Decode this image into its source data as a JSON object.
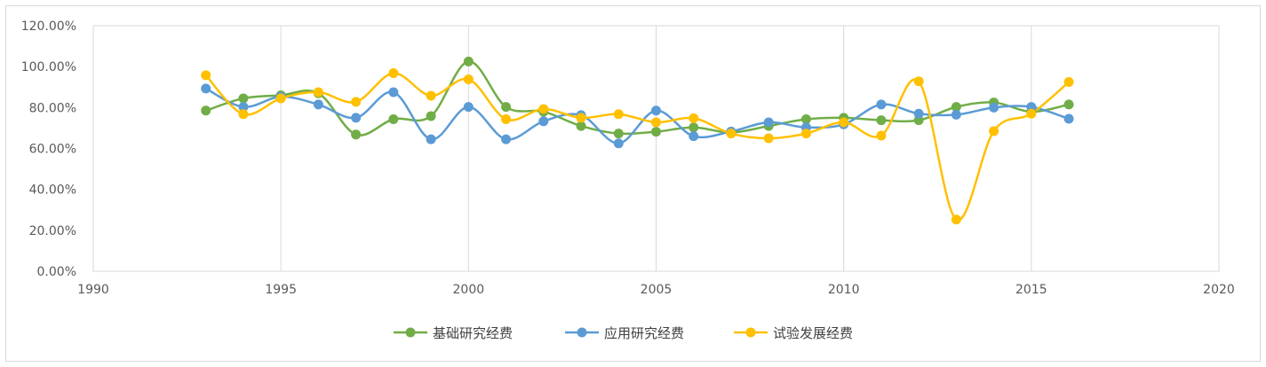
{
  "chart_data": {
    "type": "line",
    "title": "",
    "xlabel": "",
    "ylabel": "",
    "xlim": [
      1990,
      2020
    ],
    "ylim": [
      0,
      120
    ],
    "x_ticks": [
      1990,
      1995,
      2000,
      2005,
      2010,
      2015,
      2020
    ],
    "x_tick_labels": [
      "1990",
      "1995",
      "2000",
      "2005",
      "2010",
      "2015",
      "2020"
    ],
    "y_ticks": [
      0,
      20,
      40,
      60,
      80,
      100,
      120
    ],
    "y_tick_labels": [
      "0.00%",
      "20.00%",
      "40.00%",
      "60.00%",
      "80.00%",
      "100.00%",
      "120.00%"
    ],
    "grid": "vertical",
    "legend_position": "bottom",
    "x": [
      1993,
      1994,
      1995,
      1996,
      1997,
      1998,
      1999,
      2000,
      2001,
      2002,
      2003,
      2004,
      2005,
      2006,
      2007,
      2008,
      2009,
      2010,
      2011,
      2012,
      2013,
      2014,
      2015,
      2016
    ],
    "series": [
      {
        "name": "基础研究经费",
        "color": "#70ad47",
        "values": [
          78.5,
          84.5,
          86.0,
          87.0,
          66.8,
          74.3,
          75.8,
          102.5,
          80.3,
          78.0,
          71.0,
          67.3,
          68.2,
          70.3,
          67.8,
          71.0,
          74.3,
          75.0,
          73.8,
          73.8,
          80.3,
          82.5,
          78.0,
          81.5
        ]
      },
      {
        "name": "应用研究经费",
        "color": "#5b9bd5",
        "values": [
          89.3,
          80.3,
          85.3,
          81.5,
          75.0,
          87.5,
          64.5,
          80.3,
          64.5,
          73.3,
          76.3,
          62.5,
          78.5,
          66.0,
          68.3,
          72.8,
          70.3,
          71.8,
          81.5,
          77.0,
          76.5,
          80.0,
          80.3,
          74.5
        ]
      },
      {
        "name": "试验发展经费",
        "color": "#ffc000",
        "values": [
          95.8,
          76.8,
          84.5,
          87.5,
          82.8,
          96.8,
          85.8,
          93.8,
          74.3,
          79.3,
          75.0,
          76.8,
          72.8,
          74.8,
          67.3,
          65.0,
          67.3,
          72.8,
          66.3,
          92.8,
          25.3,
          68.5,
          77.0,
          92.5
        ]
      }
    ]
  }
}
